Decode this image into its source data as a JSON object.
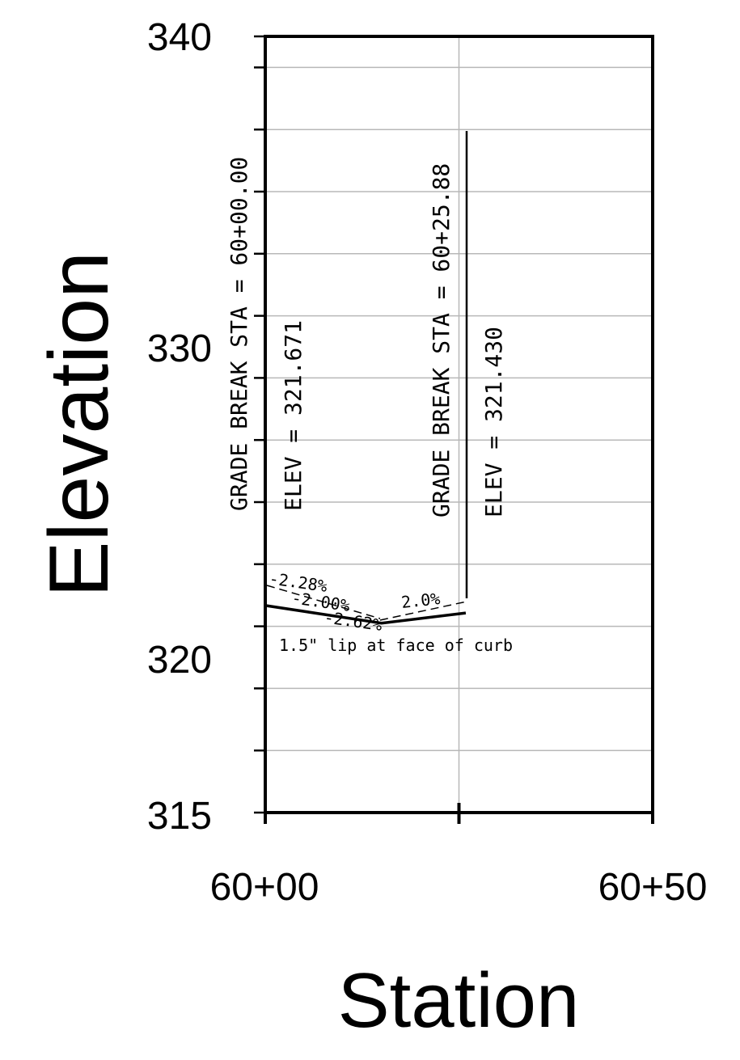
{
  "chart_data": {
    "type": "line",
    "title": "",
    "xlabel": "Station",
    "ylabel": "Elevation",
    "xlim": [
      0,
      50
    ],
    "ylim": [
      315,
      340
    ],
    "x_tick_labels": [
      "60+00",
      "60+50"
    ],
    "y_tick_labels": [
      "340",
      "330",
      "320",
      "315"
    ],
    "grid": true,
    "series": [
      {
        "points": [
          {
            "x": 0,
            "y": 321.671
          },
          {
            "x": 15,
            "y": 321.1
          },
          {
            "x": 25.88,
            "y": 321.43
          }
        ]
      }
    ],
    "grade_breaks": [
      {
        "label": "GRADE BREAK STA = 60+00.00",
        "elev_label": "ELEV = 321.671"
      },
      {
        "label": "GRADE BREAK STA = 60+25.88",
        "elev_label": "ELEV = 321.430"
      }
    ],
    "slope_labels": [
      "-2.28%",
      "-2.00%",
      "-2.62%",
      "2.0%"
    ],
    "note": "1.5\" lip at face of curb"
  }
}
